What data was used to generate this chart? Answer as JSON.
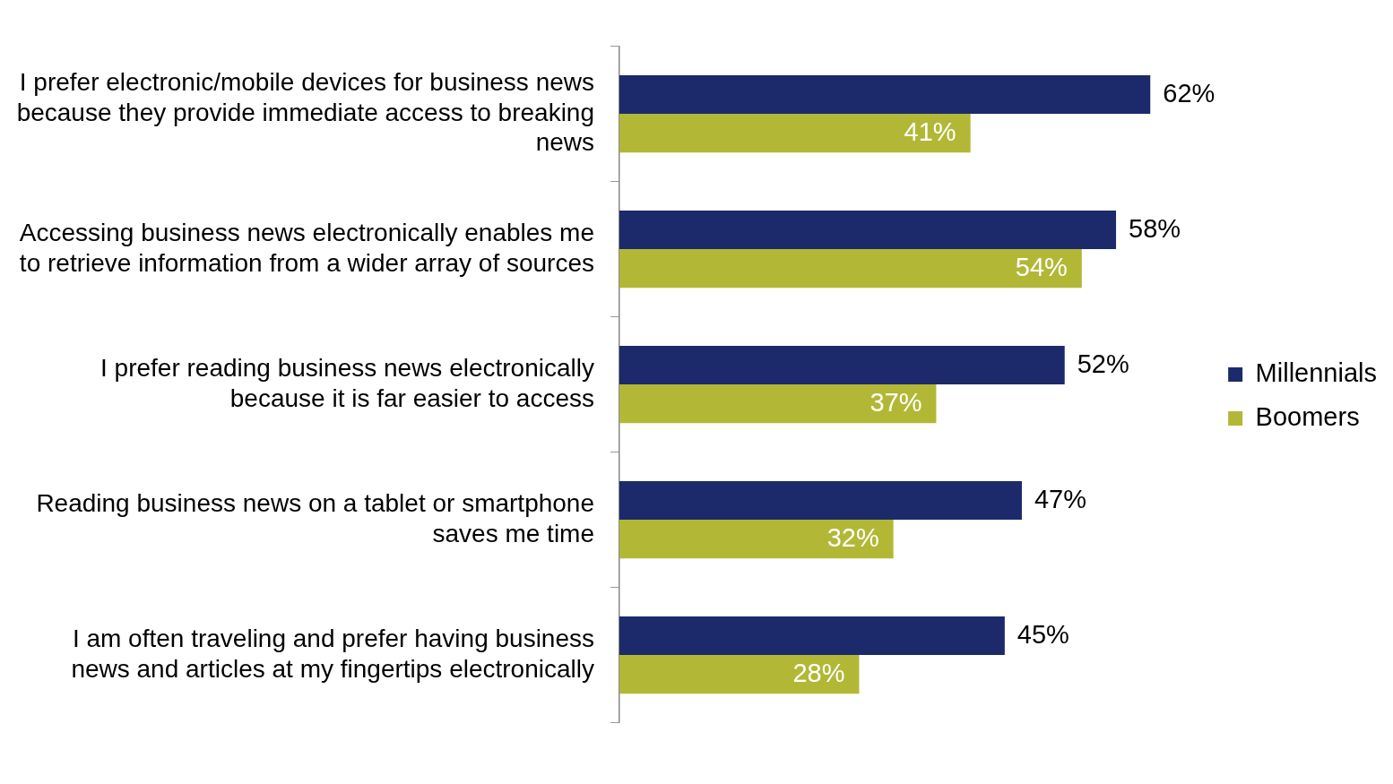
{
  "chart_data": {
    "type": "bar",
    "orientation": "horizontal",
    "categories": [
      "I prefer electronic/mobile devices for business news because they provide immediate access to breaking news",
      "Accessing business news electronically enables me to retrieve information from a wider array of sources",
      "I prefer reading business news electronically because it is far easier to access",
      "Reading business news on a tablet or smartphone saves me time",
      "I am often traveling and prefer having business news and articles at my fingertips electronically"
    ],
    "series": [
      {
        "name": "Millennials",
        "color": "#1c2a6b",
        "values": [
          62,
          58,
          52,
          47,
          45
        ],
        "value_labels": [
          "62%",
          "58%",
          "52%",
          "47%",
          "45%"
        ]
      },
      {
        "name": "Boomers",
        "color": "#b2b836",
        "values": [
          41,
          54,
          37,
          32,
          28
        ],
        "value_labels": [
          "41%",
          "54%",
          "37%",
          "32%",
          "28%"
        ]
      }
    ],
    "legend": "right",
    "grid": false,
    "tick_labels": "y"
  }
}
